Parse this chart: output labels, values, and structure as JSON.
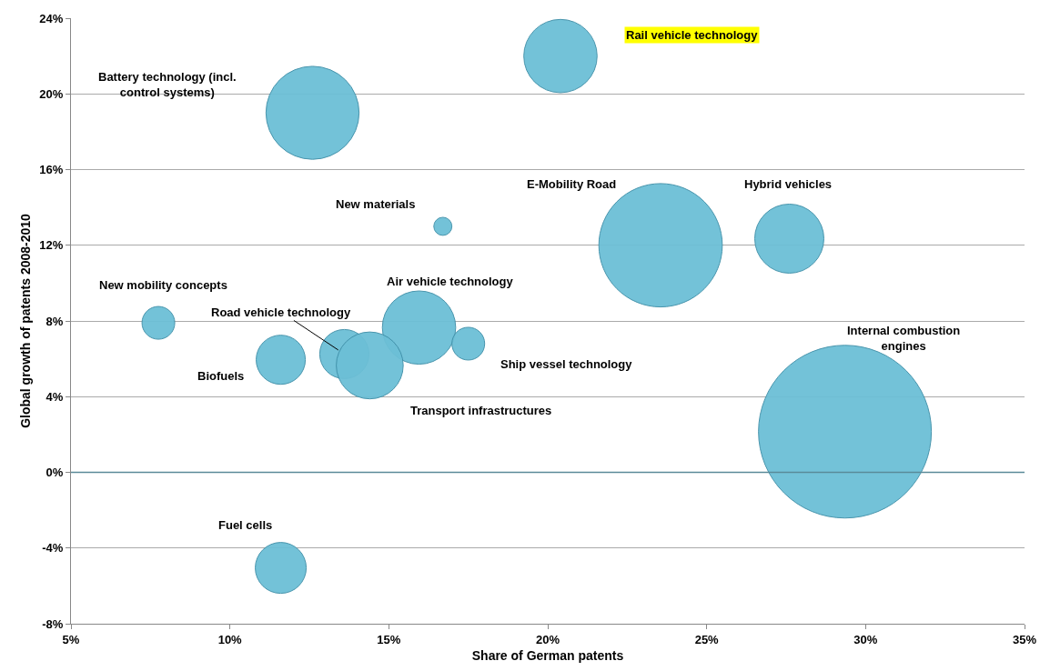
{
  "chart_data": {
    "type": "bubble",
    "xlabel": "Share of German patents",
    "ylabel": "Global growth of patents 2008-2010",
    "x": [
      12.6,
      20.4,
      16.7,
      23.55,
      27.6,
      7.75,
      15.95,
      13.6,
      14.4,
      11.6,
      17.5,
      29.35,
      11.6
    ],
    "values": [
      19.0,
      22.0,
      13.0,
      12.0,
      12.35,
      7.9,
      7.65,
      6.25,
      5.65,
      5.95,
      6.8,
      2.15,
      -5.05
    ],
    "sizes": [
      0.29,
      0.18,
      0.011,
      0.51,
      0.16,
      0.036,
      0.18,
      0.081,
      0.15,
      0.081,
      0.036,
      1,
      0.087
    ],
    "color": "#6cbfd6",
    "annotations": [
      "Battery technology (incl.\ncontrol systems)",
      "Rail vehicle technology",
      "New materials",
      "E-Mobility Road",
      "Hybrid vehicles",
      "New mobility concepts",
      "Air vehicle technology",
      {
        "text": "Road vehicle technology",
        "x": 13.6,
        "y": 6.25
      },
      "Transport infrastructures",
      "Biofuels",
      "Ship vessel technology",
      "Internal combustion\nengines",
      "Fuel cells"
    ],
    "xlim": [
      5,
      35
    ],
    "xticks": [
      {
        "value": 5,
        "label": "5%"
      },
      {
        "value": 10,
        "label": "10%"
      },
      {
        "value": 15,
        "label": "15%"
      },
      {
        "value": 20,
        "label": "20%"
      },
      {
        "value": 25,
        "label": "25%"
      },
      {
        "value": 30,
        "label": "30%"
      },
      {
        "value": 35,
        "label": "35%"
      }
    ],
    "ylim": [
      -8,
      24
    ],
    "yticks": [
      {
        "value": -8,
        "label": "-8%"
      },
      {
        "value": -4,
        "label": "-4%"
      },
      {
        "value": 0,
        "label": "0%"
      },
      {
        "value": 4,
        "label": "4%"
      },
      {
        "value": 8,
        "label": "8%"
      },
      {
        "value": 12,
        "label": "12%"
      },
      {
        "value": 16,
        "label": "16%"
      },
      {
        "value": 20,
        "label": "20%"
      },
      {
        "value": 24,
        "label": "24%"
      }
    ],
    "ref_lines": [
      {
        "axis": "y",
        "value": 0,
        "color": "#5a8a99"
      }
    ],
    "grid": "y"
  }
}
